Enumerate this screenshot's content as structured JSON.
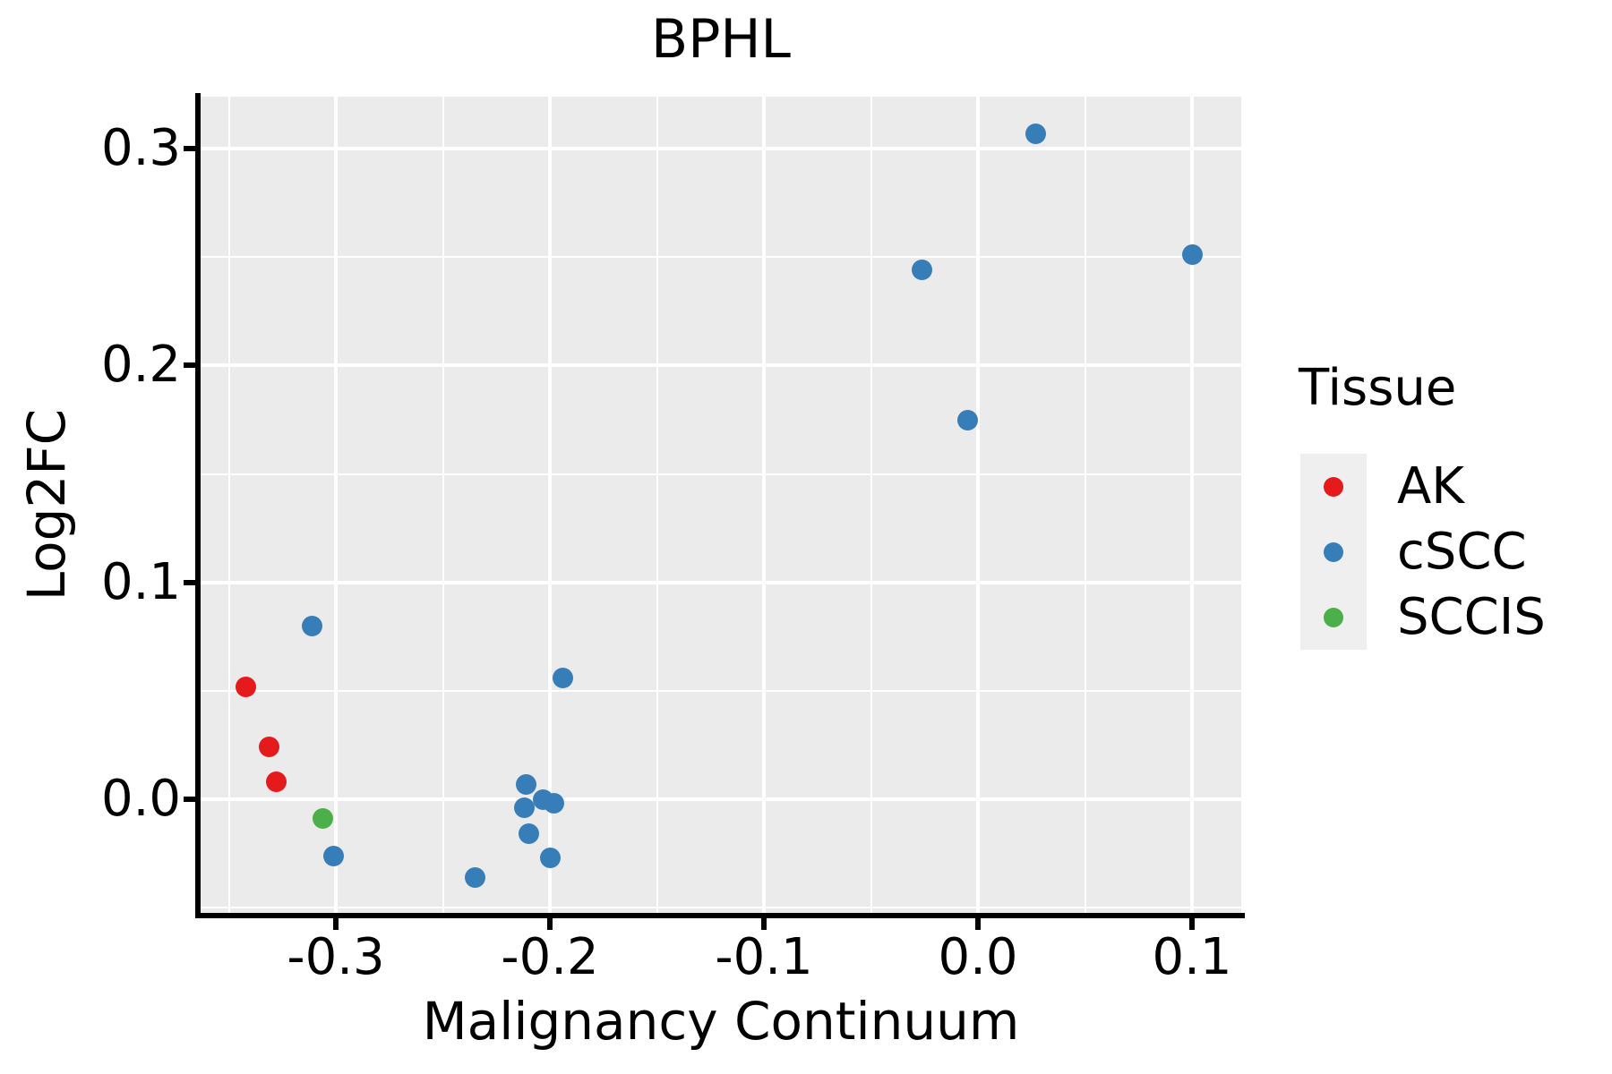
{
  "title": "BPHL",
  "x_axis": {
    "label": "Malignancy Continuum",
    "tick_labels": [
      "-0.3",
      "-0.2",
      "-0.1",
      "0.0",
      "0.1"
    ],
    "tick_values": [
      -0.3,
      -0.2,
      -0.1,
      0.0,
      0.1
    ],
    "minor_tick_values": [
      -0.35,
      -0.25,
      -0.15,
      -0.05,
      0.05
    ],
    "range": [
      -0.3632,
      0.123
    ]
  },
  "y_axis": {
    "label": "Log2FC",
    "tick_labels": [
      "0.3",
      "0.2",
      "0.1",
      "0.0"
    ],
    "tick_values": [
      0.3,
      0.2,
      0.1,
      0.0
    ],
    "minor_tick_values": [
      0.25,
      0.15,
      0.05,
      -0.05
    ],
    "range": [
      -0.0524,
      0.324
    ]
  },
  "legend": {
    "title": "Tissue",
    "entries": [
      {
        "label": "AK",
        "color": "#e41a1c"
      },
      {
        "label": "cSCC",
        "color": "#377eb8"
      },
      {
        "label": "SCCIS",
        "color": "#4daf4a"
      }
    ]
  },
  "colors": {
    "panel_background": "#ebebeb",
    "gridline": "#ffffff",
    "axis": "#000000",
    "legend_key_background": "#efefef",
    "ak_red": "#e41a1c",
    "cscc_blue": "#377eb8",
    "sccis_green": "#4daf4a"
  },
  "chart_data": {
    "type": "scatter",
    "title": "BPHL",
    "xlabel": "Malignancy Continuum",
    "ylabel": "Log2FC",
    "xlim": [
      -0.3632,
      0.123
    ],
    "ylim": [
      -0.0524,
      0.324
    ],
    "grid": "major-and-minor",
    "legend_title": "Tissue",
    "legend_position": "right",
    "series": [
      {
        "name": "AK",
        "color": "#e41a1c",
        "points": [
          [
            -0.342,
            0.052
          ],
          [
            -0.331,
            0.024
          ],
          [
            -0.328,
            0.008
          ]
        ]
      },
      {
        "name": "cSCC",
        "color": "#377eb8",
        "points": [
          [
            -0.311,
            0.08
          ],
          [
            -0.301,
            -0.026
          ],
          [
            -0.235,
            -0.036
          ],
          [
            -0.211,
            0.007
          ],
          [
            -0.212,
            -0.004
          ],
          [
            -0.203,
            0.0
          ],
          [
            -0.198,
            -0.002
          ],
          [
            -0.21,
            -0.016
          ],
          [
            -0.2,
            -0.027
          ],
          [
            -0.194,
            0.056
          ],
          [
            -0.026,
            0.244
          ],
          [
            -0.005,
            0.175
          ],
          [
            0.027,
            0.307
          ],
          [
            0.1,
            0.251
          ]
        ]
      },
      {
        "name": "SCCIS",
        "color": "#4daf4a",
        "points": [
          [
            -0.306,
            -0.009
          ]
        ]
      }
    ]
  }
}
